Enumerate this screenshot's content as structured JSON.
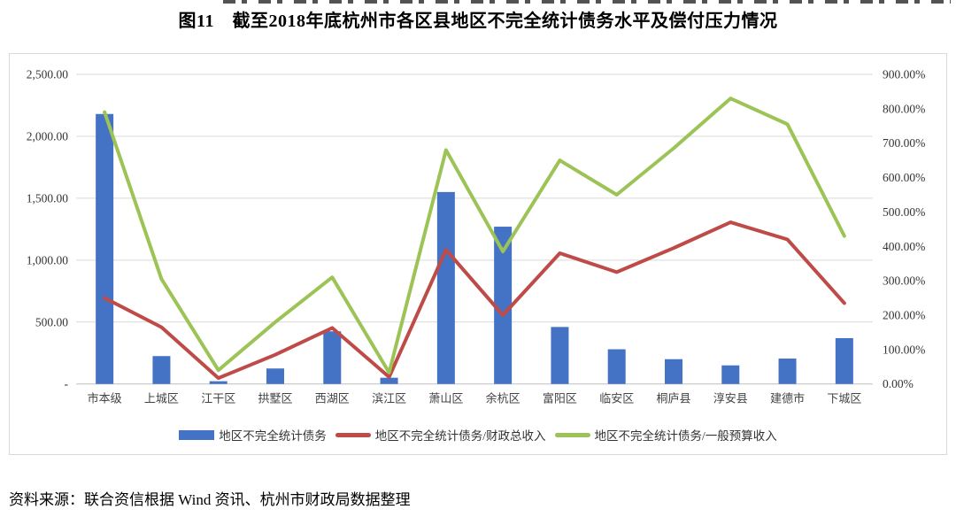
{
  "page": {
    "title": "图11　截至2018年底杭州市各区县地区不完全统计债务水平及偿付压力情况",
    "source_note": "资料来源：联合资信根据 Wind 资讯、杭州市财政局数据整理"
  },
  "chart_data": {
    "type": "bar",
    "subtype": "combo-bar-line-dual-axis",
    "title": "图11　截至2018年底杭州市各区县地区不完全统计债务水平及偿付压力情况",
    "categories": [
      "市本级",
      "上城区",
      "江干区",
      "拱墅区",
      "西湖区",
      "滨江区",
      "萧山区",
      "余杭区",
      "富阳区",
      "临安区",
      "桐庐县",
      "淳安县",
      "建德市",
      "下城区"
    ],
    "series": [
      {
        "name": "地区不完全统计债务",
        "type": "bar",
        "axis": "left",
        "color": "#4472c4",
        "values": [
          2180,
          225,
          22,
          125,
          425,
          50,
          1550,
          1270,
          460,
          280,
          200,
          150,
          205,
          370
        ]
      },
      {
        "name": "地区不完全统计债务/财政总收入",
        "type": "line",
        "axis": "right",
        "color": "#be4b48",
        "unit": "%",
        "values": [
          250,
          165,
          17,
          85,
          163,
          20,
          390,
          200,
          380,
          325,
          395,
          470,
          420,
          235
        ]
      },
      {
        "name": "地区不完全统计债务/一般预算收入",
        "type": "line",
        "axis": "right",
        "color": "#9cc355",
        "unit": "%",
        "values": [
          790,
          305,
          40,
          180,
          310,
          33,
          680,
          385,
          650,
          550,
          685,
          830,
          755,
          430
        ]
      }
    ],
    "left_axis": {
      "min": 0,
      "max": 2500,
      "step": 500,
      "tick_labels_top_to_bottom": [
        "2,500.00",
        "2,000.00",
        "1,500.00",
        "1,000.00",
        "500.00",
        "-"
      ]
    },
    "right_axis": {
      "min": 0,
      "max": 900,
      "step": 100,
      "tick_labels_top_to_bottom": [
        "900.00%",
        "800.00%",
        "700.00%",
        "600.00%",
        "500.00%",
        "400.00%",
        "300.00%",
        "200.00%",
        "100.00%",
        "0.00%"
      ]
    },
    "legend_position": "bottom",
    "grid": true,
    "colors": {
      "gridline": "#d9d9d9",
      "axis_line": "#bfbfbf",
      "tick_text": "#333333",
      "category_text": "#444444"
    }
  }
}
